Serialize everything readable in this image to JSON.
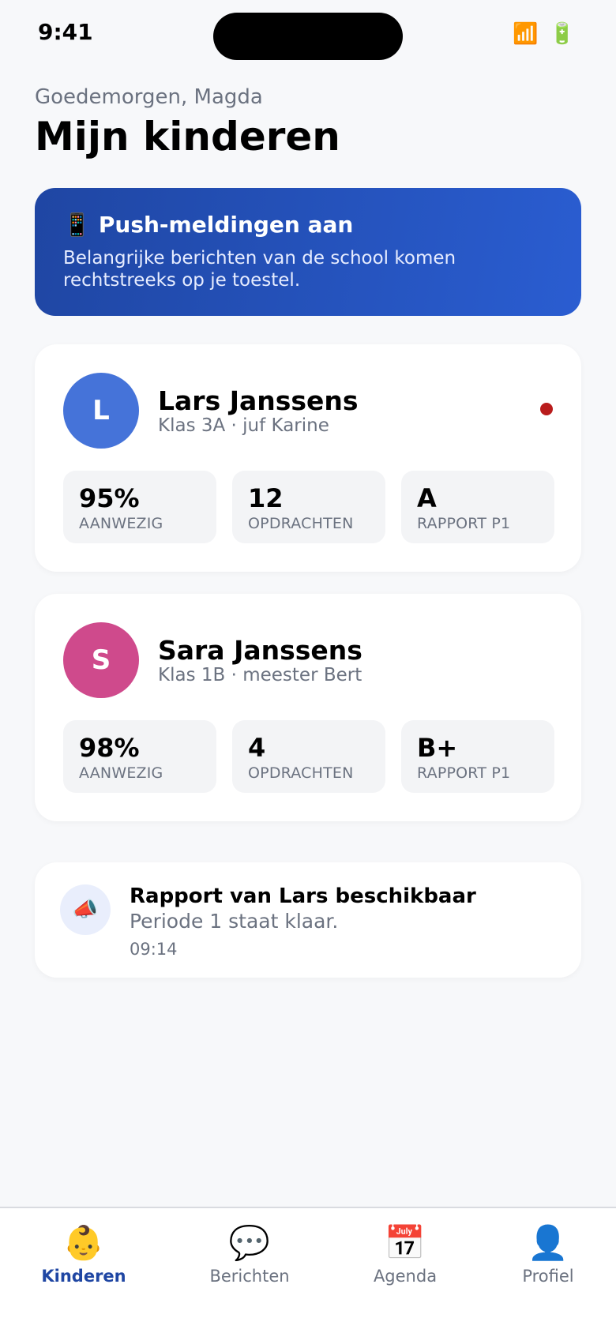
{
  "status_bar": {
    "time": "9:41",
    "signal_icon": "signal-icon",
    "battery_icon": "battery-icon"
  },
  "header": {
    "greeting": "Goedemorgen, Magda",
    "title": "Mijn kinderen"
  },
  "push_banner": {
    "icon": "📱",
    "title": "Push-meldingen aan",
    "text": "Belangrijke berichten van de school komen rechtstreeks op je toestel."
  },
  "children": [
    {
      "initial": "L",
      "name": "Lars Janssens",
      "class": "Klas 3A · juf Karine",
      "avatar_color": "#4573d9",
      "has_unread": true,
      "stats": [
        {
          "value": "95%",
          "label": "AANWEZIG"
        },
        {
          "value": "12",
          "label": "OPDRACHTEN"
        },
        {
          "value": "A",
          "label": "RAPPORT P1"
        }
      ]
    },
    {
      "initial": "S",
      "name": "Sara Janssens",
      "class": "Klas 1B · meester Bert",
      "avatar_color": "#cf4a8c",
      "has_unread": false,
      "stats": [
        {
          "value": "98%",
          "label": "AANWEZIG"
        },
        {
          "value": "4",
          "label": "OPDRACHTEN"
        },
        {
          "value": "B+",
          "label": "RAPPORT P1"
        }
      ]
    }
  ],
  "notification": {
    "icon": "📣",
    "title": "Rapport van Lars beschikbaar",
    "body": "Periode 1 staat klaar.",
    "time": "09:14"
  },
  "tabbar": {
    "tabs": [
      {
        "label": "Kinderen",
        "icon": "👶",
        "active": true
      },
      {
        "label": "Berichten",
        "icon": "💬",
        "active": false
      },
      {
        "label": "Agenda",
        "icon": "📅",
        "active": false
      },
      {
        "label": "Profiel",
        "icon": "👤",
        "active": false
      }
    ]
  },
  "colors": {
    "accent": "#1f46a3",
    "unread": "#b91c1c"
  }
}
